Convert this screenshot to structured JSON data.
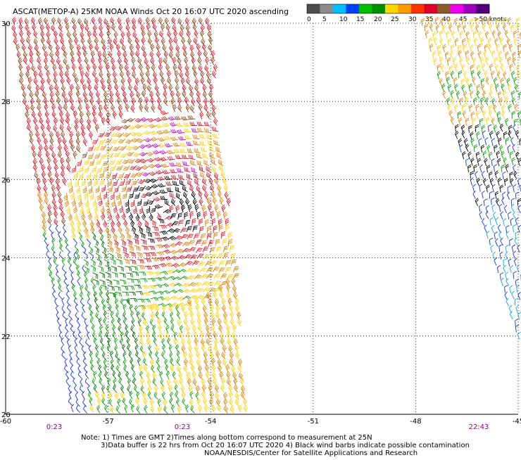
{
  "title": "ASCAT(METOP-A) 25KM NOAA Winds Oct 20 16:07 UTC 2020 ascending",
  "legend": {
    "swatches": [
      "#4d4d4d",
      "#8c8c8c",
      "#00bfff",
      "#0040ff",
      "#00c000",
      "#009000",
      "#ffd700",
      "#ff9900",
      "#ff3300",
      "#e0002a",
      "#8b5a2b",
      "#ee00ee",
      "#a000c0",
      "#50007a"
    ],
    "labels": [
      "0",
      "5",
      "10",
      "15",
      "20",
      "25",
      "30",
      "35",
      "40",
      "45",
      ">50 knots"
    ]
  },
  "lat_labels": [
    "30",
    "28",
    "26",
    "24",
    "22",
    "20"
  ],
  "lon_labels": [
    "-60",
    "-57",
    "-54",
    "-51",
    "-48",
    "-45"
  ],
  "time_labels": [
    "0:23",
    "0:23",
    "22:43"
  ],
  "notes": [
    "Note: 1) Times are GMT 2)Times along bottom correspond to measurement at 25N",
    "3)Data buffer is 22 hrs from Oct 20 16:07 UTC 2020 4) Black wind barbs indicate possible contamination",
    "NOAA/NESDIS/Center for Satellite Applications and Research"
  ],
  "storm": {
    "center_lon": -55.4,
    "center_lat": 25.2
  },
  "colors": {
    "grid": "#000000",
    "time_label": "#8b008b",
    "barb_blue": "#1030e0",
    "barb_cyan": "#00a8e8",
    "barb_green": "#00a000",
    "barb_darkgreen": "#006a00",
    "barb_yellow": "#ffd000",
    "barb_orange": "#e08000",
    "barb_red": "#e01020",
    "barb_brown": "#8b4513",
    "barb_magenta": "#d000d0",
    "barb_black": "#000000"
  }
}
